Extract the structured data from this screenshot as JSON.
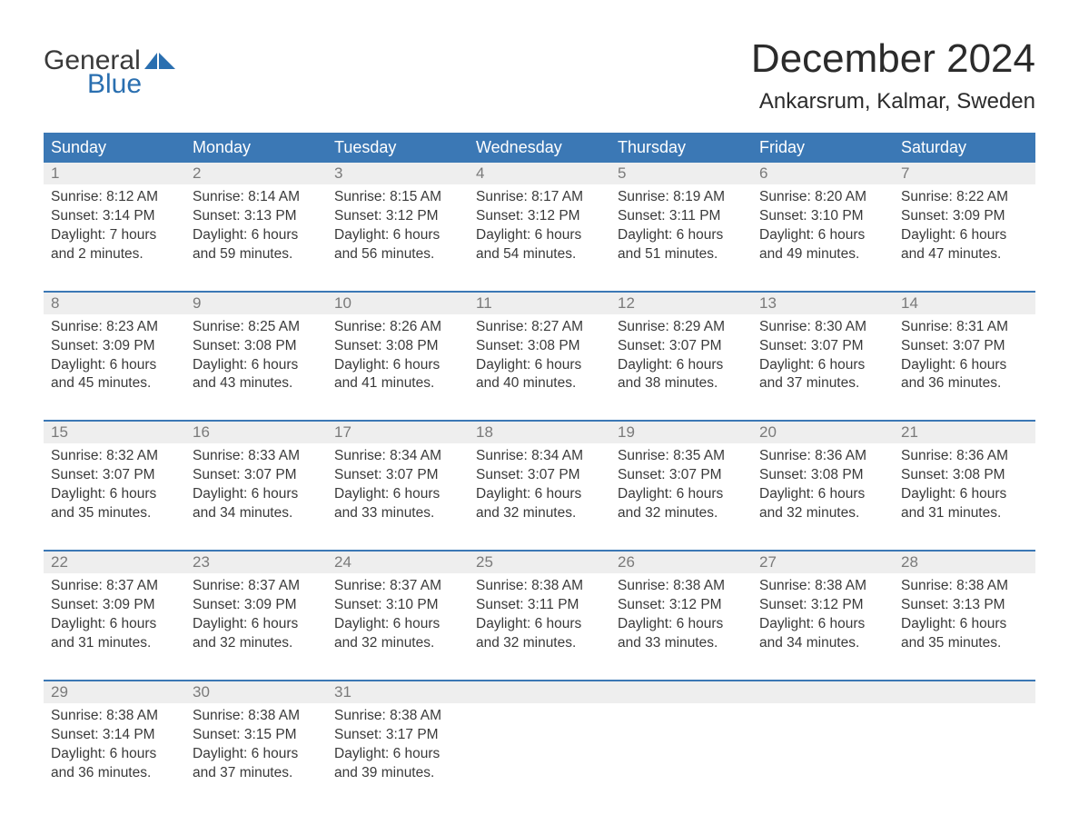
{
  "logo": {
    "word1": "General",
    "word2": "Blue",
    "accent_color": "#2a6fb0",
    "text_color": "#3a3a3a"
  },
  "title": "December 2024",
  "location": "Ankarsrum, Kalmar, Sweden",
  "colors": {
    "header_bg": "#3b78b5",
    "header_text": "#ffffff",
    "week_border": "#3b78b5",
    "daynum_bg": "#eeeeee",
    "daynum_text": "#7a7a7a",
    "body_text": "#3a3a3a",
    "page_bg": "#ffffff"
  },
  "day_names": [
    "Sunday",
    "Monday",
    "Tuesday",
    "Wednesday",
    "Thursday",
    "Friday",
    "Saturday"
  ],
  "weeks": [
    [
      {
        "n": "1",
        "sunrise": "8:12 AM",
        "sunset": "3:14 PM",
        "daylight1": "Daylight: 7 hours",
        "daylight2": "and 2 minutes."
      },
      {
        "n": "2",
        "sunrise": "8:14 AM",
        "sunset": "3:13 PM",
        "daylight1": "Daylight: 6 hours",
        "daylight2": "and 59 minutes."
      },
      {
        "n": "3",
        "sunrise": "8:15 AM",
        "sunset": "3:12 PM",
        "daylight1": "Daylight: 6 hours",
        "daylight2": "and 56 minutes."
      },
      {
        "n": "4",
        "sunrise": "8:17 AM",
        "sunset": "3:12 PM",
        "daylight1": "Daylight: 6 hours",
        "daylight2": "and 54 minutes."
      },
      {
        "n": "5",
        "sunrise": "8:19 AM",
        "sunset": "3:11 PM",
        "daylight1": "Daylight: 6 hours",
        "daylight2": "and 51 minutes."
      },
      {
        "n": "6",
        "sunrise": "8:20 AM",
        "sunset": "3:10 PM",
        "daylight1": "Daylight: 6 hours",
        "daylight2": "and 49 minutes."
      },
      {
        "n": "7",
        "sunrise": "8:22 AM",
        "sunset": "3:09 PM",
        "daylight1": "Daylight: 6 hours",
        "daylight2": "and 47 minutes."
      }
    ],
    [
      {
        "n": "8",
        "sunrise": "8:23 AM",
        "sunset": "3:09 PM",
        "daylight1": "Daylight: 6 hours",
        "daylight2": "and 45 minutes."
      },
      {
        "n": "9",
        "sunrise": "8:25 AM",
        "sunset": "3:08 PM",
        "daylight1": "Daylight: 6 hours",
        "daylight2": "and 43 minutes."
      },
      {
        "n": "10",
        "sunrise": "8:26 AM",
        "sunset": "3:08 PM",
        "daylight1": "Daylight: 6 hours",
        "daylight2": "and 41 minutes."
      },
      {
        "n": "11",
        "sunrise": "8:27 AM",
        "sunset": "3:08 PM",
        "daylight1": "Daylight: 6 hours",
        "daylight2": "and 40 minutes."
      },
      {
        "n": "12",
        "sunrise": "8:29 AM",
        "sunset": "3:07 PM",
        "daylight1": "Daylight: 6 hours",
        "daylight2": "and 38 minutes."
      },
      {
        "n": "13",
        "sunrise": "8:30 AM",
        "sunset": "3:07 PM",
        "daylight1": "Daylight: 6 hours",
        "daylight2": "and 37 minutes."
      },
      {
        "n": "14",
        "sunrise": "8:31 AM",
        "sunset": "3:07 PM",
        "daylight1": "Daylight: 6 hours",
        "daylight2": "and 36 minutes."
      }
    ],
    [
      {
        "n": "15",
        "sunrise": "8:32 AM",
        "sunset": "3:07 PM",
        "daylight1": "Daylight: 6 hours",
        "daylight2": "and 35 minutes."
      },
      {
        "n": "16",
        "sunrise": "8:33 AM",
        "sunset": "3:07 PM",
        "daylight1": "Daylight: 6 hours",
        "daylight2": "and 34 minutes."
      },
      {
        "n": "17",
        "sunrise": "8:34 AM",
        "sunset": "3:07 PM",
        "daylight1": "Daylight: 6 hours",
        "daylight2": "and 33 minutes."
      },
      {
        "n": "18",
        "sunrise": "8:34 AM",
        "sunset": "3:07 PM",
        "daylight1": "Daylight: 6 hours",
        "daylight2": "and 32 minutes."
      },
      {
        "n": "19",
        "sunrise": "8:35 AM",
        "sunset": "3:07 PM",
        "daylight1": "Daylight: 6 hours",
        "daylight2": "and 32 minutes."
      },
      {
        "n": "20",
        "sunrise": "8:36 AM",
        "sunset": "3:08 PM",
        "daylight1": "Daylight: 6 hours",
        "daylight2": "and 32 minutes."
      },
      {
        "n": "21",
        "sunrise": "8:36 AM",
        "sunset": "3:08 PM",
        "daylight1": "Daylight: 6 hours",
        "daylight2": "and 31 minutes."
      }
    ],
    [
      {
        "n": "22",
        "sunrise": "8:37 AM",
        "sunset": "3:09 PM",
        "daylight1": "Daylight: 6 hours",
        "daylight2": "and 31 minutes."
      },
      {
        "n": "23",
        "sunrise": "8:37 AM",
        "sunset": "3:09 PM",
        "daylight1": "Daylight: 6 hours",
        "daylight2": "and 32 minutes."
      },
      {
        "n": "24",
        "sunrise": "8:37 AM",
        "sunset": "3:10 PM",
        "daylight1": "Daylight: 6 hours",
        "daylight2": "and 32 minutes."
      },
      {
        "n": "25",
        "sunrise": "8:38 AM",
        "sunset": "3:11 PM",
        "daylight1": "Daylight: 6 hours",
        "daylight2": "and 32 minutes."
      },
      {
        "n": "26",
        "sunrise": "8:38 AM",
        "sunset": "3:12 PM",
        "daylight1": "Daylight: 6 hours",
        "daylight2": "and 33 minutes."
      },
      {
        "n": "27",
        "sunrise": "8:38 AM",
        "sunset": "3:12 PM",
        "daylight1": "Daylight: 6 hours",
        "daylight2": "and 34 minutes."
      },
      {
        "n": "28",
        "sunrise": "8:38 AM",
        "sunset": "3:13 PM",
        "daylight1": "Daylight: 6 hours",
        "daylight2": "and 35 minutes."
      }
    ],
    [
      {
        "n": "29",
        "sunrise": "8:38 AM",
        "sunset": "3:14 PM",
        "daylight1": "Daylight: 6 hours",
        "daylight2": "and 36 minutes."
      },
      {
        "n": "30",
        "sunrise": "8:38 AM",
        "sunset": "3:15 PM",
        "daylight1": "Daylight: 6 hours",
        "daylight2": "and 37 minutes."
      },
      {
        "n": "31",
        "sunrise": "8:38 AM",
        "sunset": "3:17 PM",
        "daylight1": "Daylight: 6 hours",
        "daylight2": "and 39 minutes."
      },
      null,
      null,
      null,
      null
    ]
  ],
  "labels": {
    "sunrise_prefix": "Sunrise: ",
    "sunset_prefix": "Sunset: "
  }
}
